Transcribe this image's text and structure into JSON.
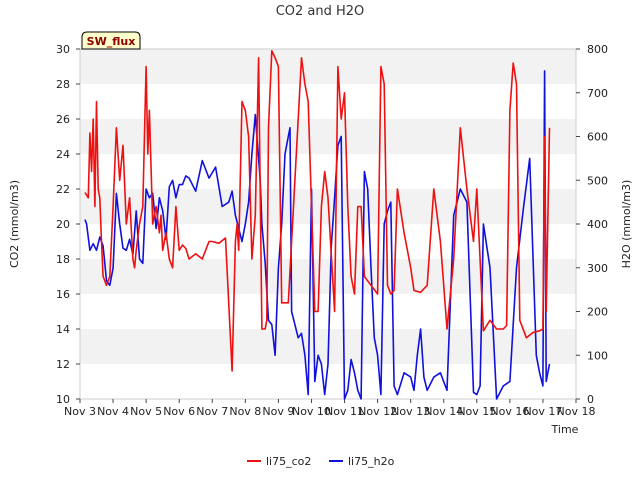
{
  "chart_data": {
    "type": "line",
    "title": "CO2 and H2O",
    "badge": "SW_flux",
    "xlabel": "Time",
    "ylabel_left": "CO2 (mmol/m3)",
    "ylabel_right": "H2O (mmol/m3)",
    "x_range_days": [
      3,
      18
    ],
    "x_tick_days": [
      3,
      4,
      5,
      6,
      7,
      8,
      9,
      10,
      11,
      12,
      13,
      14,
      15,
      16,
      17,
      18
    ],
    "x_tick_labels": [
      "Nov 3",
      "Nov 4",
      "Nov 5",
      "Nov 6",
      "Nov 7",
      "Nov 8",
      "Nov 9",
      "Nov 10",
      "Nov 11",
      "Nov 12",
      "Nov 13",
      "Nov 14",
      "Nov 15",
      "Nov 16",
      "Nov 17",
      "Nov 18"
    ],
    "ylim_left": [
      10,
      30
    ],
    "y_ticks_left": [
      "10",
      "12",
      "14",
      "16",
      "18",
      "20",
      "22",
      "24",
      "26",
      "28",
      "30"
    ],
    "ylim_right": [
      0,
      800
    ],
    "y_ticks_right": [
      "0",
      "100",
      "200",
      "300",
      "400",
      "500",
      "600",
      "700",
      "800"
    ],
    "colors": {
      "co2": "#ee1111",
      "h2o": "#1111dd",
      "band": "#f2f2f2",
      "badge_bg": "#ffffcc"
    },
    "series": [
      {
        "name": "li75_co2",
        "axis": "left",
        "color": "#ee1111",
        "x": [
          3.15,
          3.25,
          3.3,
          3.35,
          3.4,
          3.45,
          3.5,
          3.55,
          3.6,
          3.65,
          3.7,
          3.8,
          3.9,
          4.0,
          4.1,
          4.2,
          4.3,
          4.4,
          4.5,
          4.6,
          4.65,
          4.7,
          4.8,
          4.9,
          5.0,
          5.05,
          5.1,
          5.2,
          5.3,
          5.4,
          5.45,
          5.5,
          5.6,
          5.7,
          5.8,
          5.9,
          6.0,
          6.1,
          6.2,
          6.3,
          6.5,
          6.7,
          6.9,
          7.0,
          7.2,
          7.4,
          7.6,
          7.7,
          7.75,
          7.8,
          7.9,
          8.0,
          8.1,
          8.2,
          8.3,
          8.4,
          8.5,
          8.6,
          8.65,
          8.7,
          8.8,
          8.9,
          9.0,
          9.1,
          9.3,
          9.7,
          9.8,
          9.9,
          10.0,
          10.1,
          10.2,
          10.3,
          10.4,
          10.5,
          10.7,
          10.8,
          10.9,
          11.0,
          11.1,
          11.2,
          11.3,
          11.4,
          11.5,
          11.6,
          11.8,
          12.0,
          12.1,
          12.2,
          12.3,
          12.4,
          12.5,
          12.6,
          12.8,
          13.0,
          13.1,
          13.3,
          13.5,
          13.7,
          13.9,
          14.1,
          14.3,
          14.5,
          14.7,
          14.9,
          15.0,
          15.2,
          15.4,
          15.6,
          15.8,
          15.9,
          16.0,
          16.1,
          16.2,
          16.3,
          16.5,
          16.7,
          16.9,
          17.0,
          17.05,
          17.1,
          17.2
        ],
        "values": [
          21.8,
          21.5,
          25.2,
          23.0,
          26.0,
          21.0,
          27.0,
          22.0,
          21.5,
          19.0,
          17.0,
          16.5,
          17.0,
          21.0,
          25.5,
          22.5,
          24.5,
          20.0,
          21.5,
          18.0,
          17.5,
          18.5,
          20.0,
          21.0,
          29.0,
          24.0,
          26.5,
          20.0,
          21.0,
          19.5,
          20.5,
          18.5,
          19.5,
          18.0,
          17.5,
          21.0,
          18.5,
          18.8,
          18.6,
          18.0,
          18.3,
          18.0,
          19.0,
          19.0,
          18.9,
          19.2,
          11.6,
          19.0,
          20.0,
          18.5,
          27.0,
          26.5,
          25.0,
          18.0,
          20.5,
          29.5,
          14.0,
          14.0,
          14.5,
          25.5,
          29.9,
          29.5,
          29.0,
          15.5,
          15.5,
          29.5,
          28.0,
          27.0,
          21.0,
          15.0,
          15.0,
          21.0,
          23.0,
          21.5,
          15.0,
          29.0,
          26.0,
          27.5,
          21.0,
          17.0,
          16.0,
          21.0,
          21.0,
          17.0,
          16.5,
          16.0,
          29.0,
          28.0,
          16.5,
          16.0,
          16.2,
          22.0,
          19.5,
          17.5,
          16.2,
          16.1,
          16.5,
          22.0,
          19.0,
          14.0,
          18.0,
          25.5,
          22.0,
          19.0,
          22.0,
          13.9,
          14.5,
          14.0,
          14.0,
          14.2,
          26.5,
          29.2,
          28.0,
          14.5,
          13.5,
          13.8,
          13.9,
          14.0,
          25.0,
          15.0,
          25.5
        ]
      },
      {
        "name": "li75_h2o",
        "axis": "right",
        "color": "#1111dd",
        "x": [
          3.15,
          3.2,
          3.3,
          3.4,
          3.5,
          3.6,
          3.7,
          3.8,
          3.9,
          4.0,
          4.1,
          4.2,
          4.3,
          4.4,
          4.5,
          4.6,
          4.7,
          4.8,
          4.9,
          5.0,
          5.1,
          5.2,
          5.3,
          5.4,
          5.5,
          5.6,
          5.7,
          5.8,
          5.9,
          6.0,
          6.1,
          6.2,
          6.3,
          6.5,
          6.7,
          6.9,
          7.1,
          7.3,
          7.5,
          7.6,
          7.7,
          7.8,
          7.9,
          8.0,
          8.1,
          8.2,
          8.3,
          8.35,
          8.4,
          8.45,
          8.5,
          8.6,
          8.7,
          8.8,
          8.9,
          9.0,
          9.1,
          9.2,
          9.3,
          9.35,
          9.4,
          9.5,
          9.6,
          9.7,
          9.8,
          9.9,
          10.0,
          10.1,
          10.2,
          10.3,
          10.4,
          10.5,
          10.6,
          10.7,
          10.8,
          10.9,
          11.0,
          11.1,
          11.2,
          11.3,
          11.4,
          11.5,
          11.6,
          11.7,
          11.8,
          11.9,
          12.0,
          12.1,
          12.2,
          12.3,
          12.4,
          12.5,
          12.6,
          12.8,
          13.0,
          13.1,
          13.2,
          13.3,
          13.4,
          13.5,
          13.7,
          13.9,
          14.1,
          14.3,
          14.5,
          14.7,
          14.9,
          15.0,
          15.1,
          15.2,
          15.4,
          15.6,
          15.8,
          16.0,
          16.2,
          16.4,
          16.6,
          16.8,
          16.9,
          17.0,
          17.05,
          17.1,
          17.2
        ],
        "values": [
          410,
          400,
          340,
          355,
          340,
          370,
          350,
          270,
          260,
          300,
          470,
          400,
          345,
          340,
          365,
          330,
          430,
          320,
          310,
          480,
          460,
          470,
          390,
          460,
          430,
          365,
          485,
          500,
          460,
          490,
          490,
          510,
          505,
          475,
          545,
          505,
          530,
          440,
          450,
          475,
          420,
          390,
          360,
          400,
          450,
          560,
          650,
          600,
          550,
          500,
          400,
          310,
          180,
          170,
          100,
          300,
          400,
          560,
          600,
          620,
          200,
          170,
          140,
          150,
          100,
          10,
          480,
          40,
          100,
          80,
          10,
          80,
          350,
          460,
          580,
          600,
          0,
          20,
          90,
          60,
          20,
          0,
          520,
          480,
          300,
          140,
          100,
          10,
          400,
          430,
          450,
          30,
          10,
          60,
          50,
          20,
          100,
          160,
          50,
          20,
          50,
          60,
          20,
          420,
          480,
          450,
          15,
          10,
          30,
          400,
          300,
          0,
          30,
          40,
          300,
          430,
          550,
          100,
          60,
          30,
          750,
          40,
          80
        ]
      }
    ],
    "legend": {
      "position": "bottom",
      "entries": [
        "li75_co2",
        "li75_h2o"
      ]
    }
  }
}
